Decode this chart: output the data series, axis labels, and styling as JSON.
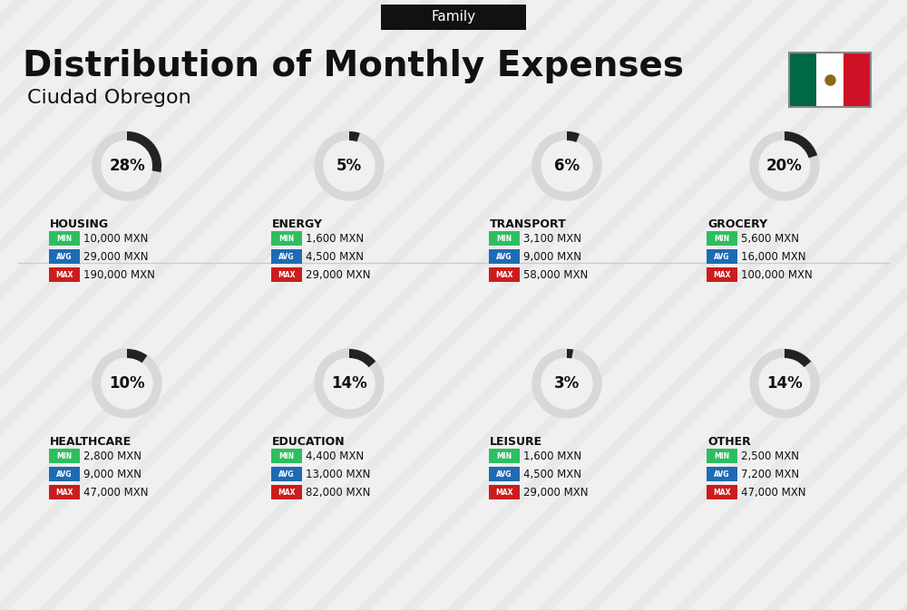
{
  "title": "Distribution of Monthly Expenses",
  "subtitle": "Ciudad Obregon",
  "tag": "Family",
  "bg_color": "#f0f0f0",
  "categories": [
    {
      "name": "HOUSING",
      "pct": 28,
      "min": "10,000 MXN",
      "avg": "29,000 MXN",
      "max": "190,000 MXN",
      "row": 0,
      "col": 0
    },
    {
      "name": "ENERGY",
      "pct": 5,
      "min": "1,600 MXN",
      "avg": "4,500 MXN",
      "max": "29,000 MXN",
      "row": 0,
      "col": 1
    },
    {
      "name": "TRANSPORT",
      "pct": 6,
      "min": "3,100 MXN",
      "avg": "9,000 MXN",
      "max": "58,000 MXN",
      "row": 0,
      "col": 2
    },
    {
      "name": "GROCERY",
      "pct": 20,
      "min": "5,600 MXN",
      "avg": "16,000 MXN",
      "max": "100,000 MXN",
      "row": 0,
      "col": 3
    },
    {
      "name": "HEALTHCARE",
      "pct": 10,
      "min": "2,800 MXN",
      "avg": "9,000 MXN",
      "max": "47,000 MXN",
      "row": 1,
      "col": 0
    },
    {
      "name": "EDUCATION",
      "pct": 14,
      "min": "4,400 MXN",
      "avg": "13,000 MXN",
      "max": "82,000 MXN",
      "row": 1,
      "col": 1
    },
    {
      "name": "LEISURE",
      "pct": 3,
      "min": "1,600 MXN",
      "avg": "4,500 MXN",
      "max": "29,000 MXN",
      "row": 1,
      "col": 2
    },
    {
      "name": "OTHER",
      "pct": 14,
      "min": "2,500 MXN",
      "avg": "7,200 MXN",
      "max": "47,000 MXN",
      "row": 1,
      "col": 3
    }
  ],
  "color_min": "#2dbe60",
  "color_avg": "#1e6ab5",
  "color_max": "#cc1c1c",
  "color_text": "#111111",
  "color_circle_bg": "#d8d8d8",
  "color_circle_fill": "#222222",
  "flag_colors": [
    "#006847",
    "#ffffff",
    "#ce1126"
  ],
  "diagonal_stripe_color": "#e0e0e0"
}
